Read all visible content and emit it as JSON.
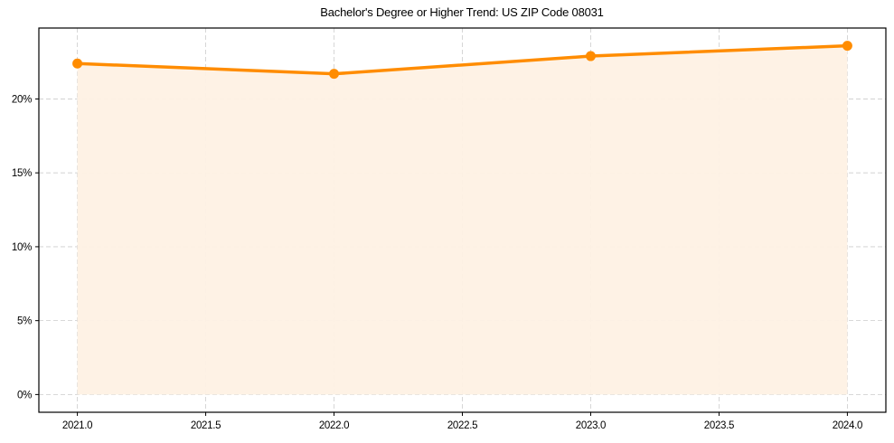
{
  "chart_data": {
    "type": "line",
    "title": "Bachelor's Degree or Higher Trend: US ZIP Code 08031",
    "xlabel": "",
    "ylabel": "",
    "x": [
      2021,
      2022,
      2023,
      2024
    ],
    "series": [
      {
        "name": "Bachelor's Degree or Higher",
        "values": [
          22.4,
          21.7,
          22.9,
          23.6
        ],
        "unit": "%",
        "style": "line with circular markers and shaded area below"
      }
    ],
    "xlim": [
      2020.85,
      2024.15
    ],
    "ylim": [
      -1.2,
      24.8
    ],
    "x_ticks": [
      "2021.0",
      "2021.5",
      "2022.0",
      "2022.5",
      "2023.0",
      "2023.5",
      "2024.0"
    ],
    "y_ticks": [
      "0%",
      "5%",
      "10%",
      "15%",
      "20%"
    ],
    "grid": true,
    "grid_style": "dashed",
    "legend": null,
    "colors": {
      "line": "#ff8c00",
      "fill": "#fef1e4",
      "grid": "#cccccc",
      "axis": "#000000"
    }
  }
}
